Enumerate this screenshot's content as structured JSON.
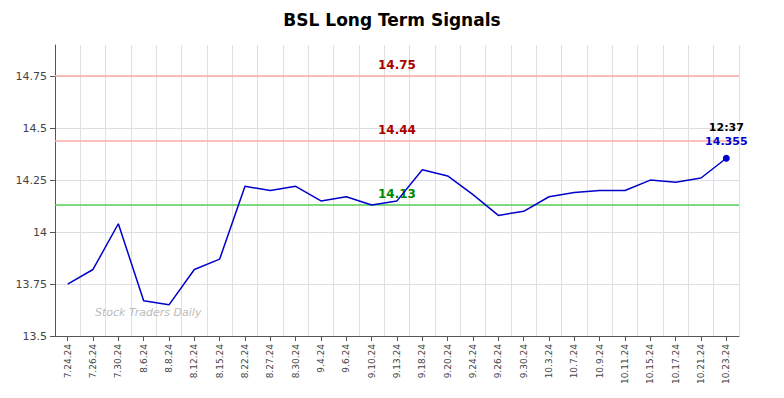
{
  "chart_data": {
    "type": "line",
    "title": "BSL Long Term Signals",
    "categories": [
      "7.24.24",
      "7.26.24",
      "7.30.24",
      "8.6.24",
      "8.8.24",
      "8.12.24",
      "8.15.24",
      "8.22.24",
      "8.27.24",
      "8.30.24",
      "9.4.24",
      "9.6.24",
      "9.10.24",
      "9.13.24",
      "9.18.24",
      "9.20.24",
      "9.24.24",
      "9.26.24",
      "9.30.24",
      "10.3.24",
      "10.7.24",
      "10.9.24",
      "10.11.24",
      "10.15.24",
      "10.17.24",
      "10.21.24",
      "10.23.24"
    ],
    "values": [
      13.75,
      13.82,
      14.04,
      13.67,
      13.65,
      13.82,
      13.87,
      14.22,
      14.2,
      14.22,
      14.15,
      14.17,
      14.13,
      14.15,
      14.3,
      14.27,
      14.18,
      14.08,
      14.1,
      14.17,
      14.19,
      14.2,
      14.2,
      14.25,
      14.24,
      14.26,
      14.355
    ],
    "color": "#0000cc",
    "ylim": [
      13.5,
      14.9
    ],
    "yticks": [
      13.5,
      13.75,
      14,
      14.25,
      14.5,
      14.75
    ],
    "grid": true,
    "annotations": [
      {
        "text": "14.75",
        "y": 14.75,
        "color": "#aa0000",
        "line_color": "#ffaaaa"
      },
      {
        "text": "14.44",
        "y": 14.44,
        "color": "#aa0000",
        "line_color": "#ffaaaa"
      },
      {
        "text": "14.13",
        "y": 14.13,
        "color": "#008800",
        "line_color": "#55cc55"
      },
      {
        "text": "12:37",
        "x": "10.23.24",
        "y": 14.355,
        "color": "#000000"
      },
      {
        "text": "14.355",
        "x": "10.23.24",
        "y": 14.355,
        "color": "#0000cc"
      },
      {
        "text": "Stock Traders Daily",
        "color": "#bbbbbb"
      }
    ]
  }
}
